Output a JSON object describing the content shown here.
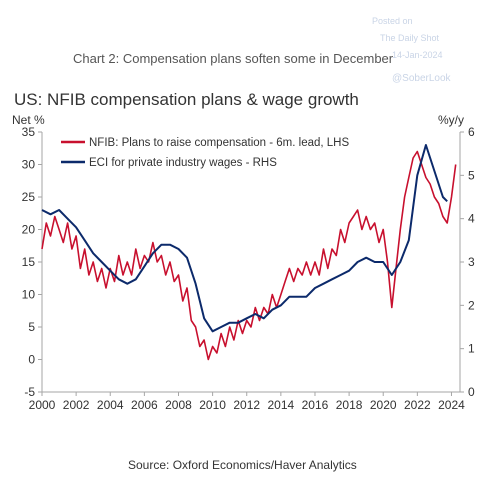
{
  "watermark": {
    "line1": "Posted on",
    "line2": "The Daily Shot",
    "line3": "14-Jan-2024",
    "handle": "@SoberLook"
  },
  "header": {
    "chart_number_title": "Chart 2: Compensation plans soften some in December"
  },
  "footer": {
    "source": "Source: Oxford Economics/Haver Analytics"
  },
  "colors": {
    "nfib": "#c8102e",
    "eci": "#0c2a6b",
    "title": "#333333",
    "axis": "#9a9a9a"
  },
  "chart_data": {
    "type": "line",
    "title": "US: NFIB compensation plans & wage growth",
    "ylabel_left": "Net %",
    "ylabel_right": "%y/y",
    "xlim": [
      2000,
      2024.5
    ],
    "ylim_left": [
      -5,
      35
    ],
    "ylim_right": [
      0,
      6
    ],
    "x_ticks": [
      "2000",
      "2002",
      "2004",
      "2006",
      "2008",
      "2010",
      "2012",
      "2014",
      "2016",
      "2018",
      "2020",
      "2022",
      "2024"
    ],
    "y_ticks_left": [
      "-5",
      "0",
      "5",
      "10",
      "15",
      "20",
      "25",
      "30",
      "35"
    ],
    "y_ticks_right": [
      "0",
      "1",
      "2",
      "3",
      "4",
      "5",
      "6"
    ],
    "legend_position": "top-left",
    "series": [
      {
        "name": "NFIB: Plans to raise compensation - 6m. lead, LHS",
        "axis": "left",
        "color": "#c8102e",
        "points": [
          [
            2000.0,
            17
          ],
          [
            2000.25,
            21
          ],
          [
            2000.5,
            19
          ],
          [
            2000.75,
            22
          ],
          [
            2001.0,
            20
          ],
          [
            2001.25,
            18
          ],
          [
            2001.5,
            21
          ],
          [
            2001.75,
            17
          ],
          [
            2002.0,
            19
          ],
          [
            2002.25,
            14
          ],
          [
            2002.5,
            17
          ],
          [
            2002.75,
            13
          ],
          [
            2003.0,
            15
          ],
          [
            2003.25,
            12
          ],
          [
            2003.5,
            14
          ],
          [
            2003.75,
            11
          ],
          [
            2004.0,
            14
          ],
          [
            2004.25,
            12
          ],
          [
            2004.5,
            16
          ],
          [
            2004.75,
            13
          ],
          [
            2005.0,
            15
          ],
          [
            2005.25,
            13
          ],
          [
            2005.5,
            17
          ],
          [
            2005.75,
            14
          ],
          [
            2006.0,
            16
          ],
          [
            2006.25,
            15
          ],
          [
            2006.5,
            18
          ],
          [
            2006.75,
            15
          ],
          [
            2007.0,
            16
          ],
          [
            2007.25,
            13
          ],
          [
            2007.5,
            15
          ],
          [
            2007.75,
            12
          ],
          [
            2008.0,
            13
          ],
          [
            2008.25,
            9
          ],
          [
            2008.5,
            11
          ],
          [
            2008.75,
            6
          ],
          [
            2009.0,
            5
          ],
          [
            2009.25,
            2
          ],
          [
            2009.5,
            3
          ],
          [
            2009.75,
            0
          ],
          [
            2010.0,
            2
          ],
          [
            2010.25,
            1
          ],
          [
            2010.5,
            4
          ],
          [
            2010.75,
            2
          ],
          [
            2011.0,
            5
          ],
          [
            2011.25,
            3
          ],
          [
            2011.5,
            6
          ],
          [
            2011.75,
            4
          ],
          [
            2012.0,
            6
          ],
          [
            2012.25,
            5
          ],
          [
            2012.5,
            8
          ],
          [
            2012.75,
            6
          ],
          [
            2013.0,
            8
          ],
          [
            2013.25,
            7
          ],
          [
            2013.5,
            10
          ],
          [
            2013.75,
            8
          ],
          [
            2014.0,
            10
          ],
          [
            2014.25,
            12
          ],
          [
            2014.5,
            14
          ],
          [
            2014.75,
            12
          ],
          [
            2015.0,
            14
          ],
          [
            2015.25,
            13
          ],
          [
            2015.5,
            15
          ],
          [
            2015.75,
            13
          ],
          [
            2016.0,
            15
          ],
          [
            2016.25,
            13
          ],
          [
            2016.5,
            17
          ],
          [
            2016.75,
            14
          ],
          [
            2017.0,
            17
          ],
          [
            2017.25,
            16
          ],
          [
            2017.5,
            20
          ],
          [
            2017.75,
            18
          ],
          [
            2018.0,
            21
          ],
          [
            2018.25,
            22
          ],
          [
            2018.5,
            23
          ],
          [
            2018.75,
            20
          ],
          [
            2019.0,
            22
          ],
          [
            2019.25,
            20
          ],
          [
            2019.5,
            21
          ],
          [
            2019.75,
            18
          ],
          [
            2020.0,
            20
          ],
          [
            2020.25,
            15
          ],
          [
            2020.5,
            8
          ],
          [
            2020.75,
            14
          ],
          [
            2021.0,
            20
          ],
          [
            2021.25,
            25
          ],
          [
            2021.5,
            28
          ],
          [
            2021.75,
            31
          ],
          [
            2022.0,
            32
          ],
          [
            2022.25,
            30
          ],
          [
            2022.5,
            28
          ],
          [
            2022.75,
            27
          ],
          [
            2023.0,
            25
          ],
          [
            2023.25,
            24
          ],
          [
            2023.5,
            22
          ],
          [
            2023.75,
            21
          ],
          [
            2024.0,
            25
          ],
          [
            2024.25,
            30
          ]
        ]
      },
      {
        "name": "ECI for private industry wages - RHS",
        "axis": "right",
        "color": "#0c2a6b",
        "points": [
          [
            2000.0,
            4.2
          ],
          [
            2000.5,
            4.1
          ],
          [
            2001.0,
            4.2
          ],
          [
            2001.5,
            4.0
          ],
          [
            2002.0,
            3.8
          ],
          [
            2002.5,
            3.5
          ],
          [
            2003.0,
            3.2
          ],
          [
            2003.5,
            3.0
          ],
          [
            2004.0,
            2.8
          ],
          [
            2004.5,
            2.6
          ],
          [
            2005.0,
            2.5
          ],
          [
            2005.5,
            2.6
          ],
          [
            2006.0,
            2.9
          ],
          [
            2006.5,
            3.2
          ],
          [
            2007.0,
            3.4
          ],
          [
            2007.5,
            3.4
          ],
          [
            2008.0,
            3.3
          ],
          [
            2008.5,
            3.1
          ],
          [
            2009.0,
            2.5
          ],
          [
            2009.5,
            1.7
          ],
          [
            2010.0,
            1.4
          ],
          [
            2010.5,
            1.5
          ],
          [
            2011.0,
            1.6
          ],
          [
            2011.5,
            1.6
          ],
          [
            2012.0,
            1.7
          ],
          [
            2012.5,
            1.8
          ],
          [
            2013.0,
            1.7
          ],
          [
            2013.5,
            1.9
          ],
          [
            2014.0,
            2.0
          ],
          [
            2014.5,
            2.2
          ],
          [
            2015.0,
            2.2
          ],
          [
            2015.5,
            2.2
          ],
          [
            2016.0,
            2.4
          ],
          [
            2016.5,
            2.5
          ],
          [
            2017.0,
            2.6
          ],
          [
            2017.5,
            2.7
          ],
          [
            2018.0,
            2.8
          ],
          [
            2018.5,
            3.0
          ],
          [
            2019.0,
            3.1
          ],
          [
            2019.5,
            3.0
          ],
          [
            2020.0,
            3.0
          ],
          [
            2020.5,
            2.7
          ],
          [
            2021.0,
            3.0
          ],
          [
            2021.5,
            3.5
          ],
          [
            2022.0,
            5.0
          ],
          [
            2022.5,
            5.7
          ],
          [
            2023.0,
            5.1
          ],
          [
            2023.5,
            4.5
          ],
          [
            2023.75,
            4.4
          ]
        ]
      }
    ]
  }
}
